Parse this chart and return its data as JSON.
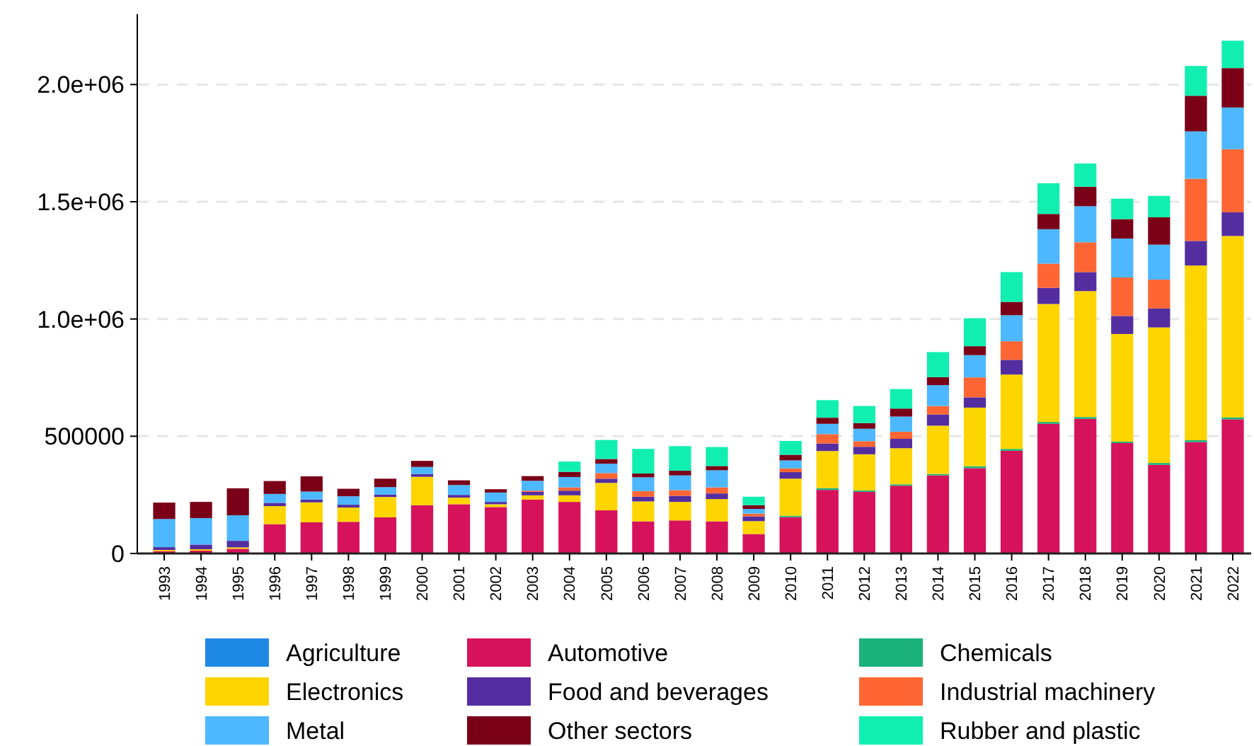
{
  "chart_data": {
    "type": "bar",
    "stacked": true,
    "categories": [
      "1993",
      "1994",
      "1995",
      "1996",
      "1997",
      "1998",
      "1999",
      "2000",
      "2001",
      "2002",
      "2003",
      "2004",
      "2005",
      "2006",
      "2007",
      "2008",
      "2009",
      "2010",
      "2011",
      "2012",
      "2013",
      "2014",
      "2015",
      "2016",
      "2017",
      "2018",
      "2019",
      "2020",
      "2021",
      "2022"
    ],
    "ylim": [
      0,
      2300000
    ],
    "yticks": [
      0,
      500000,
      {
        "value": 1000000,
        "label": "1.0e+06"
      },
      {
        "value": 1500000,
        "label": "1.5e+06"
      },
      {
        "value": 2000000,
        "label": "2.0e+06"
      }
    ],
    "grid": "y",
    "legend": "bottom",
    "series": [
      {
        "name": "Agriculture",
        "color": "#1e88e5",
        "values": [
          2000,
          2000,
          2000,
          2000,
          2000,
          2000,
          2000,
          2000,
          2000,
          2000,
          2000,
          2000,
          2000,
          2000,
          2000,
          2000,
          2000,
          2000,
          2000,
          2000,
          2000,
          2000,
          2000,
          2000,
          2000,
          2000,
          2000,
          2000,
          2000,
          2000
        ]
      },
      {
        "name": "Automotive",
        "color": "#d6125a",
        "values": [
          8000,
          10000,
          18000,
          123000,
          131000,
          133000,
          152000,
          204000,
          208000,
          196000,
          228000,
          218000,
          182000,
          135000,
          139000,
          135000,
          81000,
          153000,
          269000,
          261000,
          287000,
          331000,
          362000,
          436000,
          551000,
          572000,
          469000,
          376000,
          473000,
          570000
        ]
      },
      {
        "name": "Chemicals",
        "color": "#1ab27a",
        "values": [
          0,
          0,
          0,
          0,
          0,
          0,
          0,
          0,
          0,
          0,
          0,
          0,
          0,
          0,
          0,
          0,
          0,
          6000,
          8000,
          6000,
          6000,
          6000,
          8000,
          8000,
          8000,
          8000,
          6000,
          8000,
          8000,
          8000
        ]
      },
      {
        "name": "Electronics",
        "color": "#ffd500",
        "values": [
          5000,
          6000,
          6000,
          77000,
          85000,
          61000,
          87000,
          121000,
          28000,
          12000,
          18000,
          28000,
          117000,
          85000,
          79000,
          95000,
          55000,
          158000,
          158000,
          154000,
          154000,
          206000,
          250000,
          317000,
          503000,
          537000,
          459000,
          578000,
          745000,
          774000
        ]
      },
      {
        "name": "Food and beverages",
        "color": "#542ea0",
        "values": [
          12000,
          20000,
          28000,
          14000,
          12000,
          12000,
          10000,
          12000,
          12000,
          10000,
          15000,
          20000,
          18000,
          20000,
          26000,
          24000,
          20000,
          28000,
          32000,
          32000,
          40000,
          48000,
          44000,
          63000,
          69000,
          81000,
          77000,
          81000,
          105000,
          101000
        ]
      },
      {
        "name": "Industrial machinery",
        "color": "#ff6633",
        "values": [
          0,
          0,
          0,
          0,
          0,
          0,
          0,
          0,
          0,
          0,
          5000,
          14000,
          24000,
          24000,
          24000,
          26000,
          12000,
          16000,
          40000,
          24000,
          30000,
          36000,
          85000,
          79000,
          103000,
          127000,
          164000,
          123000,
          265000,
          269000
        ]
      },
      {
        "name": "Metal",
        "color": "#4db8ff",
        "values": [
          120000,
          113000,
          109000,
          38000,
          34000,
          36000,
          32000,
          30000,
          42000,
          40000,
          42000,
          44000,
          40000,
          59000,
          63000,
          73000,
          20000,
          34000,
          44000,
          53000,
          65000,
          89000,
          95000,
          111000,
          147000,
          154000,
          166000,
          149000,
          202000,
          178000
        ]
      },
      {
        "name": "Other sectors",
        "color": "#7a0018",
        "values": [
          70000,
          69000,
          115000,
          55000,
          65000,
          32000,
          36000,
          26000,
          20000,
          14000,
          20000,
          22000,
          20000,
          16000,
          20000,
          18000,
          16000,
          24000,
          26000,
          24000,
          34000,
          34000,
          38000,
          57000,
          65000,
          83000,
          83000,
          117000,
          152000,
          168000
        ]
      },
      {
        "name": "Rubber and plastic",
        "color": "#10efb0",
        "values": [
          0,
          0,
          0,
          0,
          0,
          0,
          0,
          0,
          0,
          0,
          0,
          44000,
          81000,
          105000,
          105000,
          81000,
          36000,
          59000,
          75000,
          73000,
          83000,
          107000,
          119000,
          127000,
          131000,
          99000,
          87000,
          91000,
          127000,
          117000
        ]
      }
    ]
  }
}
